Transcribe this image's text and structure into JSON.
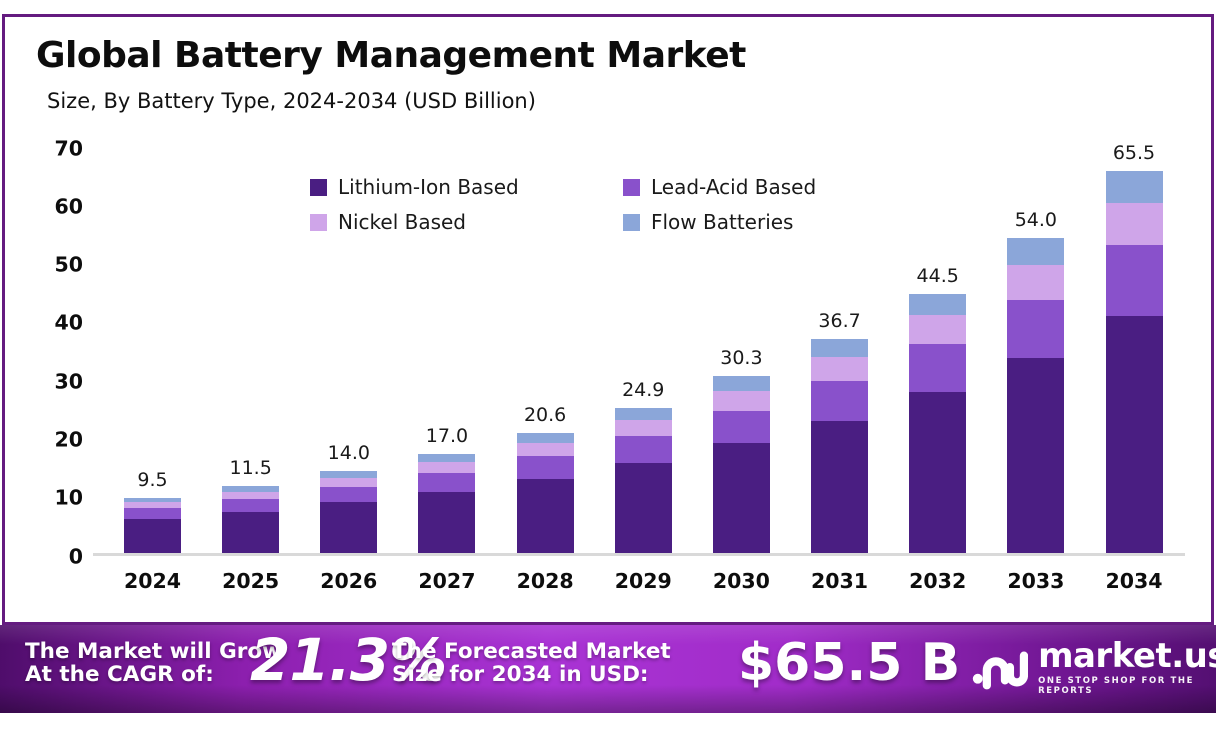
{
  "header": {
    "title": "Global Battery Management Market",
    "subtitle": "Size, By Battery Type, 2024-2034 (USD Billion)"
  },
  "chart_data": {
    "type": "bar",
    "stacked": true,
    "title": "Global Battery Management Market",
    "subtitle": "Size, By Battery Type, 2024-2034 (USD Billion)",
    "xlabel": "",
    "ylabel": "USD Billion",
    "ylim": [
      0,
      70
    ],
    "yticks": [
      0,
      10,
      20,
      30,
      40,
      50,
      60,
      70
    ],
    "grid": false,
    "legend_position": "top-center",
    "categories": [
      "2024",
      "2025",
      "2026",
      "2027",
      "2028",
      "2029",
      "2030",
      "2031",
      "2032",
      "2033",
      "2034"
    ],
    "series": [
      {
        "name": "Lithium-Ion Based",
        "color": "#4a1e82",
        "values": [
          5.9,
          7.1,
          8.7,
          10.5,
          12.7,
          15.4,
          18.8,
          22.7,
          27.6,
          33.4,
          40.6
        ]
      },
      {
        "name": "Lead-Acid Based",
        "color": "#8951cb",
        "values": [
          1.8,
          2.1,
          2.6,
          3.2,
          3.9,
          4.6,
          5.6,
          6.8,
          8.3,
          10.0,
          12.2
        ]
      },
      {
        "name": "Nickel Based",
        "color": "#cfa5e9",
        "values": [
          1.0,
          1.3,
          1.5,
          1.9,
          2.3,
          2.8,
          3.4,
          4.1,
          4.9,
          6.0,
          7.2
        ]
      },
      {
        "name": "Flow Batteries",
        "color": "#8ba6d9",
        "values": [
          0.8,
          1.0,
          1.2,
          1.4,
          1.7,
          2.1,
          2.5,
          3.1,
          3.7,
          4.6,
          5.5
        ]
      }
    ],
    "totals": [
      9.5,
      11.5,
      14.0,
      17.0,
      20.6,
      24.9,
      30.3,
      36.7,
      44.5,
      54.0,
      65.5
    ],
    "total_labels": [
      "9.5",
      "11.5",
      "14.0",
      "17.0",
      "20.6",
      "24.9",
      "30.3",
      "36.7",
      "44.5",
      "54.0",
      "65.5"
    ]
  },
  "footer": {
    "cagr_label_line1": "The Market will Grow",
    "cagr_label_line2": "At the CAGR of:",
    "cagr_value": "21.3%",
    "forecast_label_line1": "The Forecasted Market",
    "forecast_label_line2": "Size for 2034 in USD:",
    "forecast_value": "$65.5 B",
    "brand": {
      "name": "market.us",
      "tagline": "ONE STOP SHOP FOR THE REPORTS"
    }
  },
  "colors": {
    "card_border": "#641b80",
    "banner_gradient_edge": "#540f72",
    "banner_gradient_center": "#a933d4",
    "axis_line": "#d9d9d9",
    "text": "#0d0d0d"
  }
}
